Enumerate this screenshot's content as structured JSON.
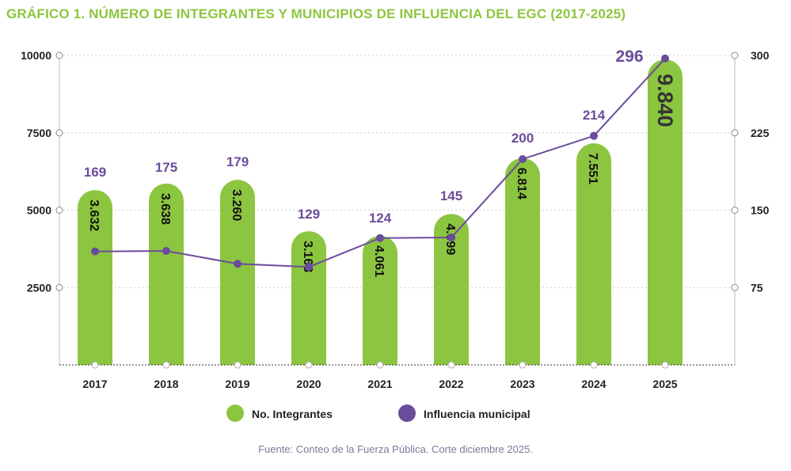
{
  "title": "GRÁFICO 1. NÚMERO DE INTEGRANTES Y MUNICIPIOS DE INFLUENCIA DEL EGC (2017-2025)",
  "source": "Fuente: Conteo de la Fuerza Pública. Corte diciembre 2025.",
  "chart_data": {
    "type": "bar+line",
    "categories": [
      "2017",
      "2018",
      "2019",
      "2020",
      "2021",
      "2022",
      "2023",
      "2024",
      "2025"
    ],
    "series": [
      {
        "name": "No. Integrantes",
        "type": "bar",
        "axis": "left",
        "color": "#8cc540",
        "labels": [
          "3.632",
          "3.638",
          "3.260",
          "3.168",
          "4.061",
          "4.099",
          "6.814",
          "7.551",
          "9.840"
        ],
        "values": [
          3632,
          3638,
          3260,
          3168,
          4061,
          4099,
          6814,
          7551,
          9840
        ]
      },
      {
        "name": "Influencia municipal",
        "type": "line",
        "axis": "right",
        "color": "#6b4c9a",
        "labels": [
          "169",
          "175",
          "179",
          "129",
          "124",
          "145",
          "200",
          "214",
          "296"
        ],
        "values": [
          169,
          175,
          179,
          129,
          124,
          145,
          200,
          214,
          296
        ]
      }
    ],
    "left_axis": {
      "ticks": [
        "2500",
        "5000",
        "7500",
        "10000"
      ],
      "range": [
        0,
        10000
      ]
    },
    "right_axis": {
      "ticks": [
        "75",
        "150",
        "225",
        "300"
      ],
      "range": [
        0,
        300
      ]
    },
    "grid": "horizontal dotted",
    "legend_placement": "bottom"
  }
}
